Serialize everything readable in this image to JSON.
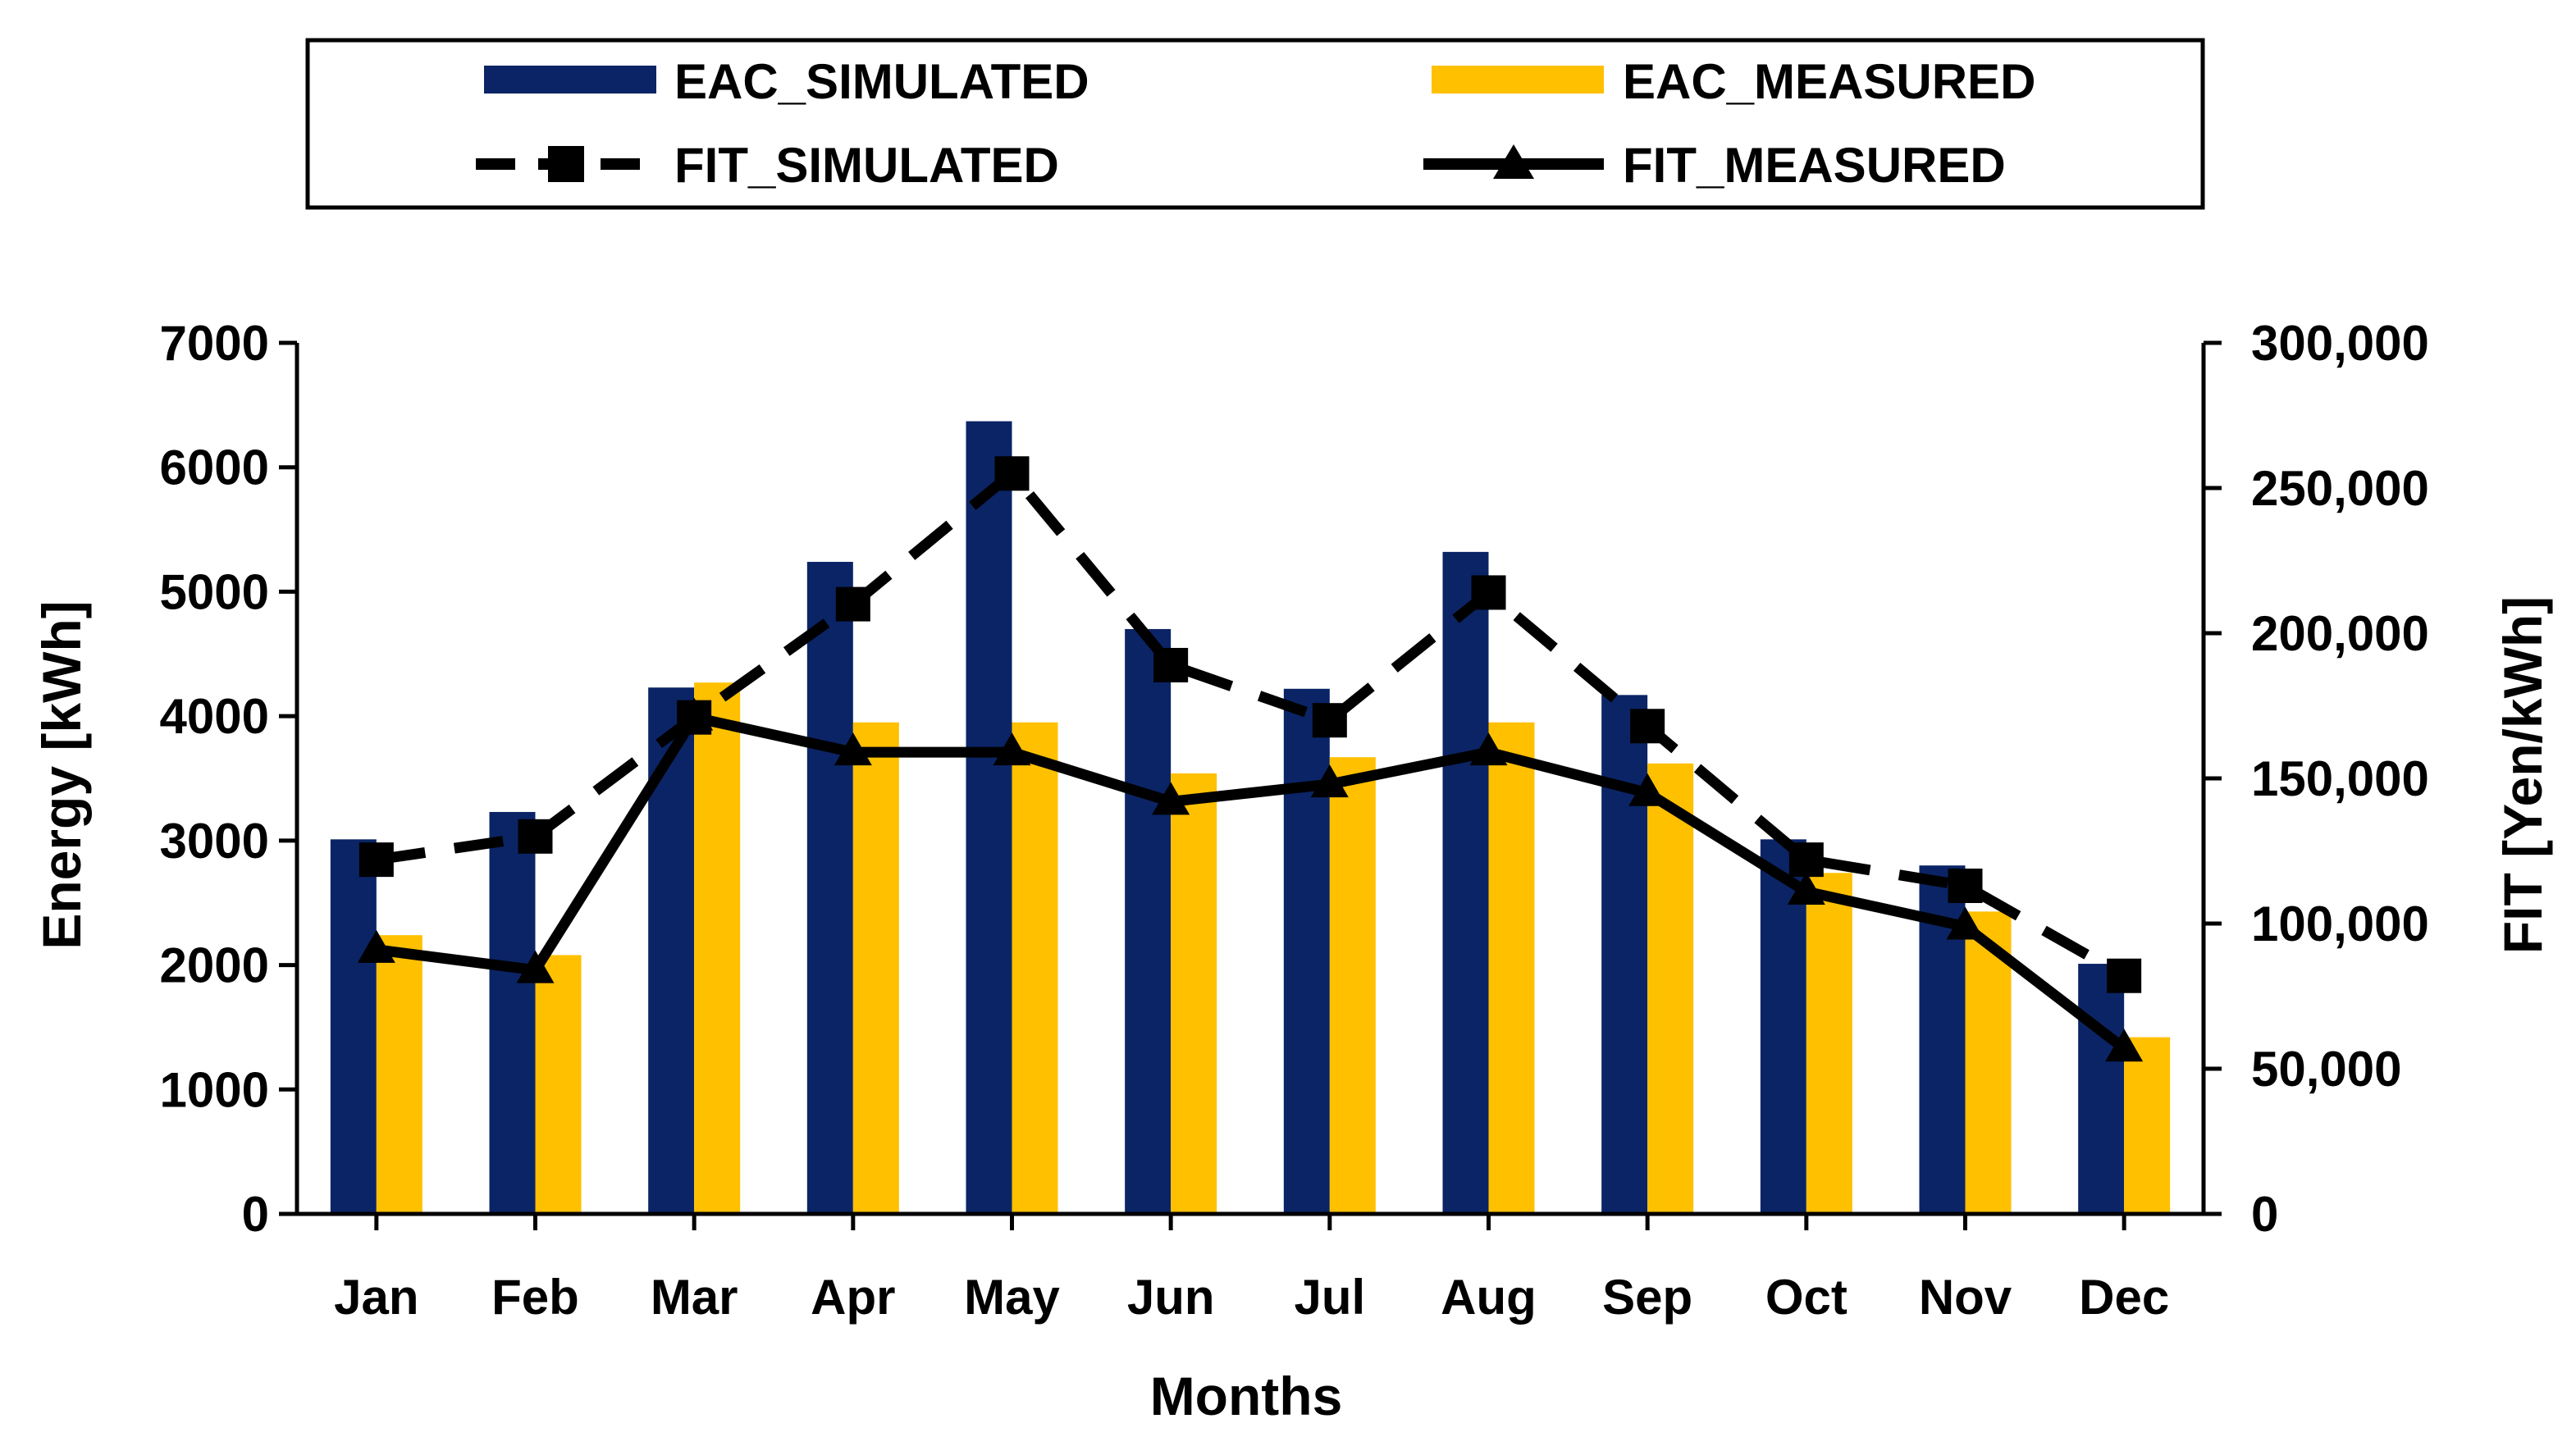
{
  "chart_data": {
    "type": "bar",
    "categories": [
      "Jan",
      "Feb",
      "Mar",
      "Apr",
      "May",
      "Jun",
      "Jul",
      "Aug",
      "Sep",
      "Oct",
      "Nov",
      "Dec"
    ],
    "series": [
      {
        "name": "EAC_SIMULATED",
        "kind": "bar",
        "axis": "left",
        "color": "#0b2466",
        "values": [
          3010,
          3230,
          4230,
          5240,
          6370,
          4700,
          4220,
          5320,
          4170,
          3010,
          2800,
          2010
        ]
      },
      {
        "name": "EAC_MEASURED",
        "kind": "bar",
        "axis": "left",
        "color": "#ffc000",
        "values": [
          2240,
          2080,
          4270,
          3950,
          3950,
          3540,
          3670,
          3950,
          3620,
          2740,
          2430,
          1420
        ]
      },
      {
        "name": "FIT_SIMULATED",
        "kind": "line",
        "style": "dashed",
        "marker": "square",
        "axis": "right",
        "color": "#000000",
        "values": [
          122000,
          130000,
          171000,
          210000,
          255000,
          189000,
          170000,
          214000,
          168000,
          122000,
          113000,
          82000
        ]
      },
      {
        "name": "FIT_MEASURED",
        "kind": "line",
        "style": "solid",
        "marker": "triangle",
        "axis": "right",
        "color": "#000000",
        "values": [
          91000,
          84000,
          171000,
          159000,
          159000,
          142000,
          148000,
          159000,
          145000,
          111000,
          99000,
          57000
        ]
      }
    ],
    "xlabel": "Months",
    "ylabel": "Energy [kWh]",
    "ylabel_right": "FIT [Yen/kWh]",
    "ylim": [
      0,
      7000
    ],
    "ylim_right": [
      0,
      300000
    ],
    "yticks": [
      "0",
      "1000",
      "2000",
      "3000",
      "4000",
      "5000",
      "6000",
      "7000"
    ],
    "yticks_right": [
      "0",
      "50,000",
      "100,000",
      "150,000",
      "200,000",
      "250,000",
      "300,000"
    ],
    "legend_position": "top",
    "grid": false
  }
}
